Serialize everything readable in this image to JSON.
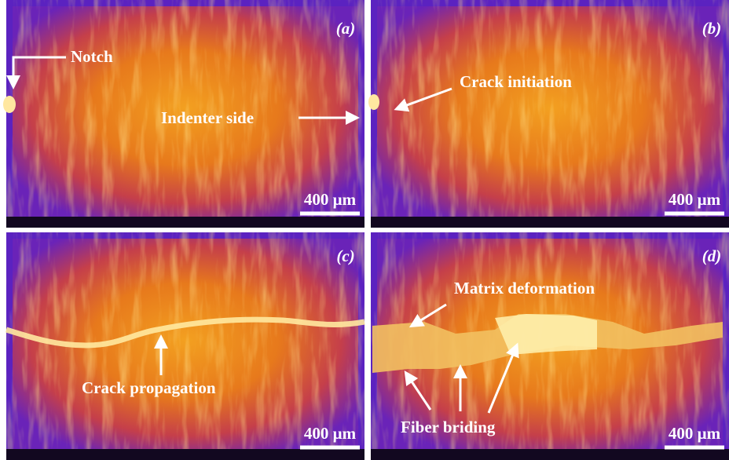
{
  "panels": [
    {
      "label": "(a)",
      "scale_bar": "400 μm",
      "annotations": [
        "Notch",
        "Indenter side"
      ]
    },
    {
      "label": "(b)",
      "scale_bar": "400 μm",
      "annotations": [
        "Crack initiation"
      ]
    },
    {
      "label": "(c)",
      "scale_bar": "400 μm",
      "annotations": [
        "Crack propagation"
      ]
    },
    {
      "label": "(d)",
      "scale_bar": "400 μm",
      "annotations": [
        "Matrix deformation",
        "Fiber briding"
      ]
    }
  ]
}
